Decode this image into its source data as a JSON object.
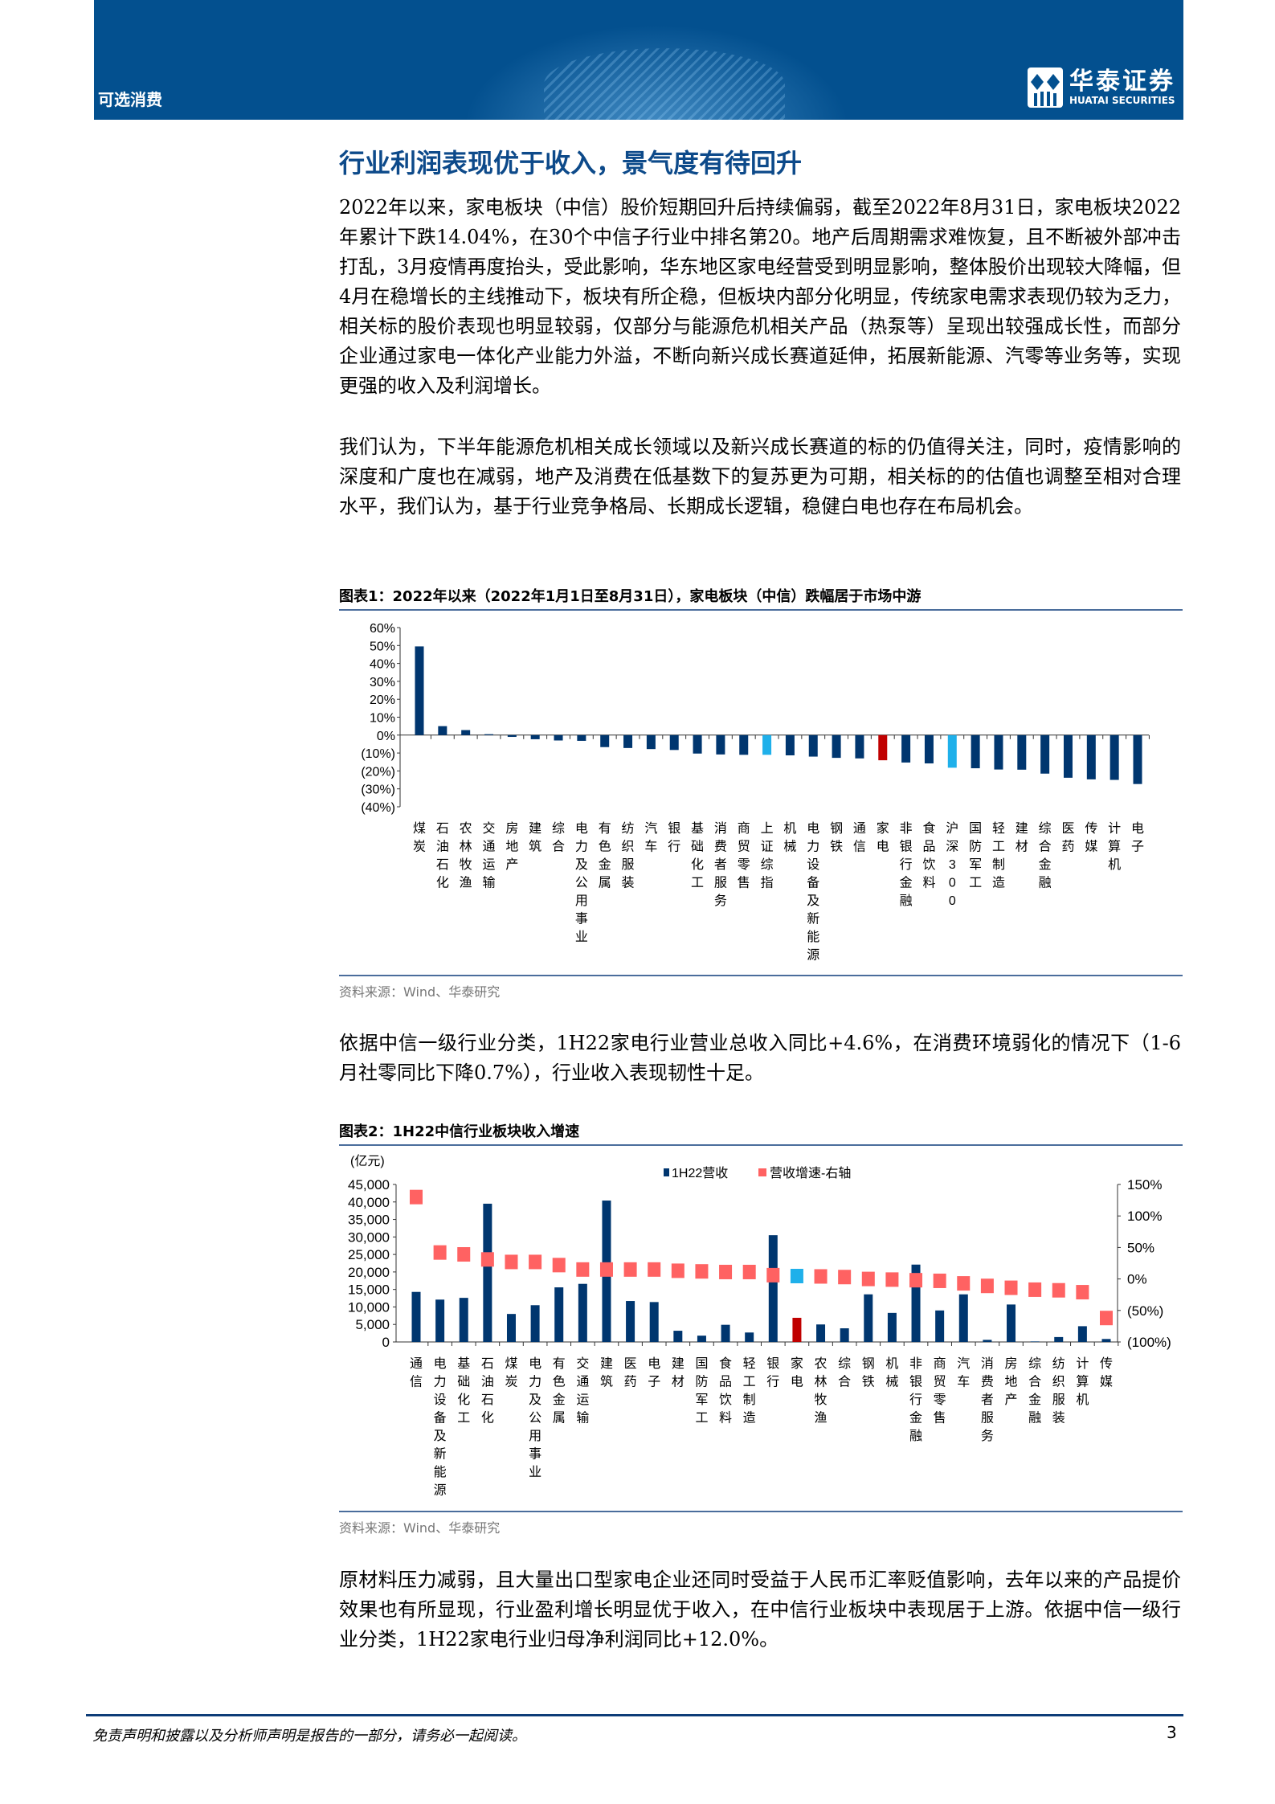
{
  "header": {
    "section": "可选消费",
    "logo_cn": "华泰证券",
    "logo_en": "HUATAI SECURITIES",
    "brand_color": "#03508f"
  },
  "title": "行业利润表现优于收入，景气度有待回升",
  "paragraphs": [
    "2022年以来，家电板块（中信）股价短期回升后持续偏弱，截至2022年8月31日，家电板块2022年累计下跌14.04%，在30个中信子行业中排名第20。地产后周期需求难恢复，且不断被外部冲击打乱，3月疫情再度抬头，受此影响，华东地区家电经营受到明显影响，整体股价出现较大降幅，但4月在稳增长的主线推动下，板块有所企稳，但板块内部分化明显，传统家电需求表现仍较为乏力，相关标的股价表现也明显较弱，仅部分与能源危机相关产品（热泵等）呈现出较强成长性，而部分企业通过家电一体化产业能力外溢，不断向新兴成长赛道延伸，拓展新能源、汽零等业务等，实现更强的收入及利润增长。",
    "我们认为，下半年能源危机相关成长领域以及新兴成长赛道的标的仍值得关注，同时，疫情影响的深度和广度也在减弱，地产及消费在低基数下的复苏更为可期，相关标的的估值也调整至相对合理水平，我们认为，基于行业竞争格局、长期成长逻辑，稳健白电也存在布局机会。",
    "依据中信一级行业分类，1H22家电行业营业总收入同比+4.6%，在消费环境弱化的情况下（1-6月社零同比下降0.7%），行业收入表现韧性十足。",
    "原材料压力减弱，且大量出口型家电企业还同时受益于人民币汇率贬值影响，去年以来的产品提价效果也有所显现，行业盈利增长明显优于收入，在中信行业板块中表现居于上游。依据中信一级行业分类，1H22家电行业归母净利润同比+12.0%。"
  ],
  "figures": [
    {
      "title": "图表1：2022年以来（2022年1月1日至8月31日），家电板块（中信）跌幅居于市场中游",
      "source": "资料来源：Wind、华泰研究"
    },
    {
      "title": "图表2：1H22中信行业板块收入增速",
      "source": "资料来源：Wind、华泰研究"
    }
  ],
  "chart_data": [
    {
      "type": "bar",
      "categories": [
        "煤炭",
        "石油石化",
        "农林牧渔",
        "交通运输",
        "房地产",
        "建筑",
        "综合",
        "电力及公用事业",
        "有色金属",
        "纺织服装",
        "汽车",
        "银行",
        "基础化工",
        "消费者服务",
        "商贸零售",
        "上证综指",
        "机械",
        "电力设备及新能源",
        "钢铁",
        "通信",
        "家电",
        "非银行金融",
        "食品饮料",
        "沪深300",
        "国防军工",
        "轻工制造",
        "建材",
        "综合金融",
        "医药",
        "传媒",
        "计算机",
        "电子"
      ],
      "values": [
        49.5,
        5.0,
        2.8,
        0.5,
        -1.0,
        -2.3,
        -3.0,
        -3.2,
        -6.7,
        -7.2,
        -7.8,
        -8.3,
        -10.3,
        -10.8,
        -11.0,
        -11.0,
        -11.3,
        -12.0,
        -12.7,
        -13.0,
        -14.04,
        -15.3,
        -15.8,
        -18.2,
        -18.5,
        -19.2,
        -19.3,
        -21.5,
        -23.8,
        -24.7,
        -25.0,
        -27.3
      ],
      "unit": "%",
      "ylim": [
        -40,
        60
      ],
      "yticks": [
        "60%",
        "50%",
        "40%",
        "30%",
        "20%",
        "10%",
        "0%",
        "(10%)",
        "(20%)",
        "(30%)",
        "(40%)"
      ],
      "colors": {
        "default": "#00366f",
        "index": "#1fb0ea",
        "highlight": "#c00000"
      },
      "index_categories": [
        "上证综指",
        "沪深300"
      ],
      "highlight_category": "家电"
    },
    {
      "type": "bar+scatter",
      "y_unit_label": "(亿元)",
      "legend": [
        "1H22营收",
        "营收增速-右轴"
      ],
      "legend_position": "top",
      "categories": [
        "通信",
        "电力设备及新能源",
        "基础化工",
        "石油石化",
        "煤炭",
        "电力及公用事业",
        "有色金属",
        "交通运输",
        "建筑",
        "医药",
        "电子",
        "建材",
        "国防军工",
        "食品饮料",
        "轻工制造",
        "银行",
        "家电",
        "农林牧渔",
        "综合",
        "钢铁",
        "机械",
        "非银行金融",
        "商贸零售",
        "汽车",
        "消费者服务",
        "房地产",
        "综合金融",
        "纺织服装",
        "计算机",
        "传媒"
      ],
      "revenue": [
        14300,
        12100,
        12600,
        39500,
        8000,
        10500,
        15600,
        16600,
        40400,
        11700,
        11400,
        3200,
        1800,
        4900,
        2700,
        30500,
        6900,
        5000,
        3900,
        13600,
        8300,
        22100,
        9000,
        13600,
        600,
        10700,
        150,
        1400,
        4500,
        850
      ],
      "growth": [
        130,
        42,
        39,
        31,
        27,
        27,
        22,
        15,
        15,
        15,
        15,
        13,
        12,
        11,
        11,
        6,
        4.6,
        4,
        3,
        0,
        -1,
        -2,
        -3,
        -7,
        -11,
        -14,
        -17,
        -18,
        -21,
        -62
      ],
      "ylim_left": [
        0,
        45000
      ],
      "ylim_right": [
        -100,
        150
      ],
      "yticks_left": [
        "45,000",
        "40,000",
        "35,000",
        "30,000",
        "25,000",
        "20,000",
        "15,000",
        "10,000",
        "5,000",
        "0"
      ],
      "yticks_right": [
        "150%",
        "100%",
        "50%",
        "0%",
        "(50%)",
        "(100%)"
      ],
      "colors": {
        "bar": "#00366f",
        "bar_highlight": "#c00000",
        "marker": "#ff6262",
        "marker_highlight": "#1fb0ea"
      },
      "highlight_category": "家电"
    }
  ],
  "footer": {
    "disclaimer": "免责声明和披露以及分析师声明是报告的一部分，请务必一起阅读。",
    "page": "3"
  }
}
